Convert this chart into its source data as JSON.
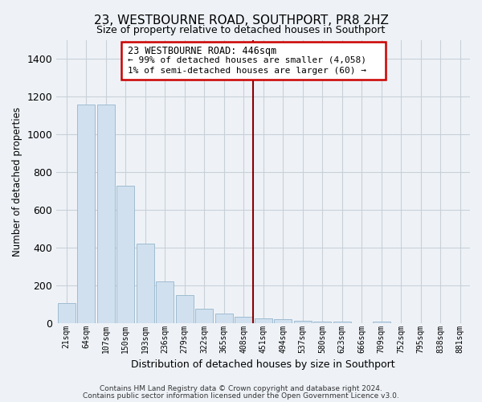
{
  "title": "23, WESTBOURNE ROAD, SOUTHPORT, PR8 2HZ",
  "subtitle": "Size of property relative to detached houses in Southport",
  "xlabel": "Distribution of detached houses by size in Southport",
  "ylabel": "Number of detached properties",
  "bar_color": "#d0e0ef",
  "bar_edge_color": "#a0bcd0",
  "categories": [
    "21sqm",
    "64sqm",
    "107sqm",
    "150sqm",
    "193sqm",
    "236sqm",
    "279sqm",
    "322sqm",
    "365sqm",
    "408sqm",
    "451sqm",
    "494sqm",
    "537sqm",
    "580sqm",
    "623sqm",
    "666sqm",
    "709sqm",
    "752sqm",
    "795sqm",
    "838sqm",
    "881sqm"
  ],
  "values": [
    107,
    1160,
    1160,
    730,
    420,
    220,
    150,
    75,
    50,
    35,
    25,
    20,
    15,
    10,
    10,
    0,
    8,
    0,
    0,
    0,
    0
  ],
  "ylim": [
    0,
    1500
  ],
  "yticks": [
    0,
    200,
    400,
    600,
    800,
    1000,
    1200,
    1400
  ],
  "marker_label": "23 WESTBOURNE ROAD: 446sqm",
  "annotation_line1": "← 99% of detached houses are smaller (4,058)",
  "annotation_line2": "1% of semi-detached houses are larger (60) →",
  "marker_color": "#8b0000",
  "annotation_box_edge": "#cc0000",
  "footnote1": "Contains HM Land Registry data © Crown copyright and database right 2024.",
  "footnote2": "Contains public sector information licensed under the Open Government Licence v3.0.",
  "background_color": "#eef2f7",
  "plot_bg_color": "#eef2f7",
  "grid_color": "#c8d0d8"
}
